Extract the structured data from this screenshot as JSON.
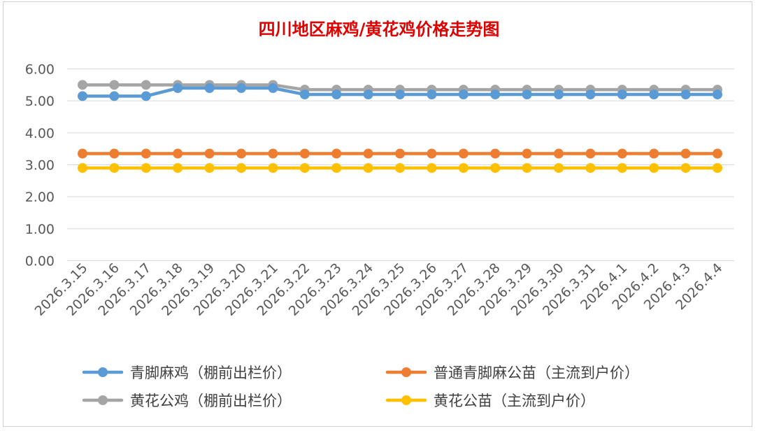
{
  "chart_data": {
    "type": "line",
    "title": "四川地区麻鸡/黄花鸡价格走势图",
    "xlabel": "",
    "ylabel": "",
    "categories": [
      "2026.3.15",
      "2026.3.16",
      "2026.3.17",
      "2026.3.18",
      "2026.3.19",
      "2026.3.20",
      "2026.3.21",
      "2026.3.22",
      "2026.3.23",
      "2026.3.24",
      "2026.3.25",
      "2026.3.26",
      "2026.3.27",
      "2026.3.28",
      "2026.3.29",
      "2026.3.30",
      "2026.3.31",
      "2026.4.1",
      "2026.4.2",
      "2026.4.3",
      "2026.4.4"
    ],
    "yticks": [
      "0.00",
      "1.00",
      "2.00",
      "3.00",
      "4.00",
      "5.00",
      "6.00"
    ],
    "ylim": [
      0,
      6
    ],
    "grid": true,
    "legend_position": "bottom",
    "series": [
      {
        "name": "青脚麻鸡（棚前出栏价）",
        "color": "#5b9bd5",
        "values": [
          5.15,
          5.15,
          5.15,
          5.4,
          5.4,
          5.4,
          5.4,
          5.2,
          5.2,
          5.2,
          5.2,
          5.2,
          5.2,
          5.2,
          5.2,
          5.2,
          5.2,
          5.2,
          5.2,
          5.2,
          5.2
        ]
      },
      {
        "name": "普通青脚麻公苗（主流到户价）",
        "color": "#ed7d31",
        "values": [
          3.35,
          3.35,
          3.35,
          3.35,
          3.35,
          3.35,
          3.35,
          3.35,
          3.35,
          3.35,
          3.35,
          3.35,
          3.35,
          3.35,
          3.35,
          3.35,
          3.35,
          3.35,
          3.35,
          3.35,
          3.35
        ]
      },
      {
        "name": "黄花公鸡（棚前出栏价）",
        "color": "#a5a5a5",
        "values": [
          5.5,
          5.5,
          5.5,
          5.5,
          5.5,
          5.5,
          5.5,
          5.35,
          5.35,
          5.35,
          5.35,
          5.35,
          5.35,
          5.35,
          5.35,
          5.35,
          5.35,
          5.35,
          5.35,
          5.35,
          5.35
        ]
      },
      {
        "name": "黄花公苗（主流到户价）",
        "color": "#ffc000",
        "values": [
          2.9,
          2.9,
          2.9,
          2.9,
          2.9,
          2.9,
          2.9,
          2.9,
          2.9,
          2.9,
          2.9,
          2.9,
          2.9,
          2.9,
          2.9,
          2.9,
          2.9,
          2.9,
          2.9,
          2.9,
          2.9
        ]
      }
    ]
  }
}
